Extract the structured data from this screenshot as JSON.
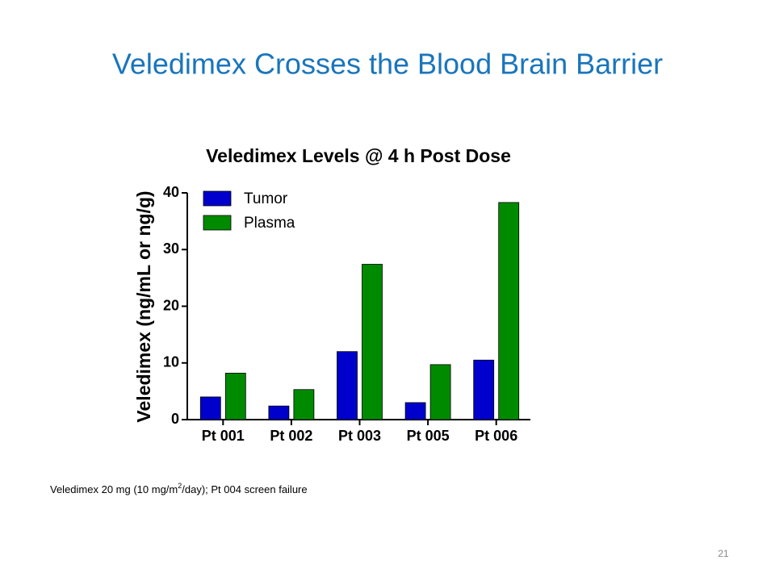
{
  "slide_title": "Veledimex Crosses the Blood Brain Barrier",
  "footnote": {
    "before": "Veledimex 20 mg (10 mg/m",
    "sup": "2",
    "after": "/day); Pt 004 screen failure"
  },
  "page_number": "21",
  "chart_data": {
    "type": "bar",
    "title": "Veledimex Levels @ 4 h Post Dose",
    "y_label": "Veledimex (ng/mL or ng/g)",
    "categories": [
      "Pt 001",
      "Pt 002",
      "Pt 003",
      "Pt 005",
      "Pt 006"
    ],
    "series": [
      {
        "name": "Tumor",
        "color": "#0000cc",
        "values": [
          4,
          2.4,
          12,
          3,
          10.5
        ]
      },
      {
        "name": "Plasma",
        "color": "#008a00",
        "values": [
          8.2,
          5.3,
          27.4,
          9.7,
          38.3
        ]
      }
    ],
    "ylim": [
      0,
      40
    ],
    "yticks": [
      0,
      10,
      20,
      30,
      40
    ],
    "legend": "top-left"
  }
}
